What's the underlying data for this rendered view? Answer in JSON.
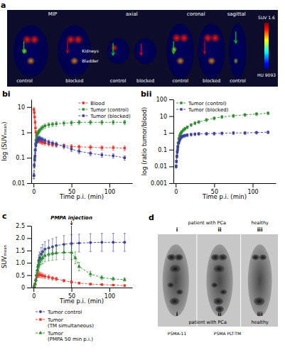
{
  "chart_data": [
    {
      "type": "image",
      "title": "a",
      "annotations": [
        "MIP",
        "axial",
        "coronal",
        "sagittal",
        "SUV 1.6",
        "control",
        "blocked",
        "control",
        "blocked",
        "control",
        "blocked",
        "control",
        "HU 9093",
        "Kidneys",
        "Bladder"
      ]
    },
    {
      "type": "line",
      "title": "bi",
      "xlabel": "Time p.i. (min)",
      "ylabel": "log (SUVₘₑₐₙ)",
      "log": "y",
      "xlim": [
        -3,
        130
      ],
      "ylim": [
        0.01,
        20
      ],
      "xticks": [
        0,
        50,
        100
      ],
      "yticks": [
        0.01,
        0.1,
        1,
        10
      ],
      "grid": false,
      "legend": "upper right",
      "series": [
        {
          "name": "Blood",
          "color": "#e8362a",
          "marker": "square",
          "line_style": "dashed",
          "x": [
            0.5,
            1,
            1.5,
            2,
            2.5,
            3,
            4,
            5,
            6,
            7,
            8,
            10,
            12,
            15,
            20,
            25,
            30,
            40,
            50,
            60,
            75,
            90,
            105,
            120
          ],
          "values": [
            8,
            6,
            4,
            2.5,
            1.5,
            1.0,
            0.7,
            0.55,
            0.5,
            0.48,
            0.45,
            0.42,
            0.4,
            0.38,
            0.35,
            0.33,
            0.32,
            0.3,
            0.28,
            0.27,
            0.26,
            0.25,
            0.25,
            0.24
          ],
          "errors": [
            1.5,
            1.2,
            0.8,
            0.5,
            0.3,
            0.2,
            0.15,
            0.12,
            0.1,
            0.09,
            0.08,
            0.07,
            0.07,
            0.07,
            0.06,
            0.06,
            0.06,
            0.05,
            0.05,
            0.05,
            0.05,
            0.05,
            0.05,
            0.05
          ]
        },
        {
          "name": "Tumor (control)",
          "color": "#2e8b2e",
          "marker": "square",
          "line_style": "dashed",
          "x": [
            0.5,
            1,
            1.5,
            2,
            2.5,
            3,
            4,
            5,
            6,
            7,
            8,
            10,
            12,
            15,
            20,
            25,
            30,
            40,
            50,
            60,
            75,
            90,
            105,
            120
          ],
          "values": [
            0.02,
            0.05,
            0.1,
            0.2,
            0.35,
            0.5,
            0.7,
            0.85,
            1.0,
            1.1,
            1.2,
            1.4,
            1.6,
            1.8,
            2.0,
            2.1,
            2.2,
            2.3,
            2.4,
            2.5,
            2.5,
            2.5,
            2.5,
            2.5
          ],
          "errors": [
            0.005,
            0.01,
            0.02,
            0.04,
            0.07,
            0.1,
            0.14,
            0.17,
            0.2,
            0.22,
            0.24,
            0.28,
            0.32,
            0.36,
            0.4,
            0.42,
            0.44,
            0.46,
            0.48,
            0.5,
            0.5,
            0.5,
            0.5,
            0.5
          ]
        },
        {
          "name": "Tumor (blocked)",
          "color": "#3d3da0",
          "marker": "square",
          "line_style": "dashed",
          "x": [
            0.5,
            1,
            1.5,
            2,
            2.5,
            3,
            4,
            5,
            6,
            7,
            8,
            10,
            12,
            15,
            20,
            25,
            30,
            40,
            50,
            60,
            75,
            90,
            105,
            120
          ],
          "values": [
            0.02,
            0.05,
            0.08,
            0.12,
            0.2,
            0.3,
            0.4,
            0.5,
            0.55,
            0.58,
            0.6,
            0.55,
            0.52,
            0.48,
            0.42,
            0.38,
            0.35,
            0.28,
            0.22,
            0.18,
            0.15,
            0.13,
            0.12,
            0.1
          ],
          "errors": [
            0.005,
            0.01,
            0.016,
            0.024,
            0.04,
            0.06,
            0.08,
            0.1,
            0.11,
            0.116,
            0.12,
            0.11,
            0.104,
            0.096,
            0.084,
            0.076,
            0.07,
            0.056,
            0.044,
            0.036,
            0.03,
            0.026,
            0.024,
            0.02
          ]
        }
      ]
    },
    {
      "type": "line",
      "title": "bii",
      "xlabel": "Time p.i. (min)",
      "ylabel": "log (ratio tumor/blood)",
      "log": "y",
      "xlim": [
        -3,
        130
      ],
      "ylim": [
        0.001,
        100
      ],
      "xticks": [
        0,
        50,
        100
      ],
      "yticks": [
        0.001,
        0.01,
        0.1,
        1,
        10,
        100
      ],
      "grid": false,
      "legend": "upper left",
      "series": [
        {
          "name": "Tumor (control)",
          "color": "#2e8b2e",
          "marker": "square",
          "line_style": "dashed",
          "x": [
            0.5,
            1,
            1.5,
            2,
            2.5,
            3,
            4,
            5,
            6,
            7,
            8,
            10,
            12,
            15,
            20,
            25,
            30,
            40,
            50,
            60,
            75,
            90,
            105,
            120
          ],
          "values": [
            0.01,
            0.02,
            0.04,
            0.08,
            0.15,
            0.25,
            0.45,
            0.65,
            0.85,
            1.0,
            1.2,
            1.5,
            1.8,
            2.2,
            3.0,
            3.8,
            4.5,
            6.0,
            7.5,
            9.0,
            10.5,
            12.0,
            13.5,
            15.0
          ],
          "errors": [
            0.002,
            0.004,
            0.008,
            0.016,
            0.03,
            0.05,
            0.09,
            0.13,
            0.17,
            0.2,
            0.24,
            0.3,
            0.36,
            0.44,
            0.6,
            0.76,
            0.9,
            1.2,
            1.5,
            1.8,
            2.1,
            2.4,
            2.7,
            3.0
          ]
        },
        {
          "name": "Tumor (blocked)",
          "color": "#3d3da0",
          "marker": "square",
          "line_style": "dashed",
          "x": [
            0.5,
            1,
            1.5,
            2,
            2.5,
            3,
            4,
            5,
            6,
            7,
            8,
            10,
            12,
            15,
            20,
            25,
            30,
            40,
            50,
            60,
            75,
            90,
            105,
            120
          ],
          "values": [
            0.01,
            0.02,
            0.04,
            0.07,
            0.1,
            0.15,
            0.25,
            0.35,
            0.45,
            0.55,
            0.6,
            0.65,
            0.7,
            0.75,
            0.8,
            0.85,
            0.88,
            0.9,
            0.92,
            0.95,
            1.0,
            1.0,
            1.05,
            1.1
          ],
          "errors": [
            0.002,
            0.004,
            0.008,
            0.014,
            0.02,
            0.03,
            0.05,
            0.07,
            0.09,
            0.11,
            0.12,
            0.13,
            0.14,
            0.15,
            0.16,
            0.17,
            0.176,
            0.18,
            0.184,
            0.19,
            0.2,
            0.2,
            0.21,
            0.22
          ]
        }
      ]
    },
    {
      "type": "line",
      "title": "c",
      "xlabel": "Time p.i. (min)",
      "ylabel": "SUVₘₑₐₙ",
      "xlim": [
        -3,
        130
      ],
      "ylim": [
        0,
        2.5
      ],
      "xticks": [
        0,
        50,
        100
      ],
      "yticks": [
        0,
        0.5,
        {
          "value": 1.0,
          "label": "1.0"
        },
        1.5,
        {
          "value": 2.0,
          "label": "2.0"
        },
        2.5
      ],
      "grid": false,
      "legend": "bottom",
      "annotations": [
        {
          "text": "PMPA injection",
          "x": 50
        }
      ],
      "series": [
        {
          "name": "Tumor control",
          "color": "#3d3da0",
          "marker": "circle",
          "line_style": "dashed",
          "x": [
            1,
            2,
            3,
            4,
            5,
            6,
            7,
            8,
            10,
            12,
            15,
            20,
            25,
            30,
            40,
            50,
            60,
            75,
            90,
            105,
            120
          ],
          "values": [
            0.05,
            0.15,
            0.3,
            0.5,
            0.7,
            0.9,
            1.1,
            1.2,
            1.35,
            1.45,
            1.55,
            1.6,
            1.65,
            1.7,
            1.75,
            1.78,
            1.8,
            1.82,
            1.83,
            1.83,
            1.83
          ],
          "errors": [
            0.01,
            0.03,
            0.06,
            0.1,
            0.14,
            0.18,
            0.22,
            0.24,
            0.27,
            0.29,
            0.31,
            0.32,
            0.33,
            0.34,
            0.35,
            0.356,
            0.36,
            0.364,
            0.366,
            0.366,
            0.366
          ]
        },
        {
          "name": "Tumor\n(TM simultaneous)",
          "color": "#e8362a",
          "marker": "square",
          "line_style": "dashed",
          "x": [
            1,
            2,
            3,
            4,
            5,
            6,
            7,
            8,
            10,
            12,
            15,
            20,
            25,
            30,
            40,
            50,
            60,
            75,
            90,
            105,
            120
          ],
          "values": [
            0.05,
            0.15,
            0.3,
            0.45,
            0.5,
            0.52,
            0.53,
            0.52,
            0.5,
            0.48,
            0.45,
            0.42,
            0.38,
            0.35,
            0.28,
            0.22,
            0.18,
            0.14,
            0.12,
            0.1,
            0.08
          ],
          "errors": [
            0.01,
            0.03,
            0.06,
            0.09,
            0.1,
            0.104,
            0.106,
            0.104,
            0.1,
            0.096,
            0.09,
            0.084,
            0.076,
            0.07,
            0.056,
            0.044,
            0.036,
            0.028,
            0.024,
            0.02,
            0.016
          ]
        },
        {
          "name": "Tumor\n(PMPA 50 min p.i.)",
          "color": "#2e8b2e",
          "marker": "triangle",
          "line_style": "dashed",
          "x": [
            1,
            2,
            3,
            4,
            5,
            6,
            7,
            8,
            10,
            12,
            15,
            20,
            25,
            30,
            40,
            50,
            55,
            60,
            75,
            90,
            105,
            120
          ],
          "values": [
            0.05,
            0.15,
            0.3,
            0.5,
            0.7,
            0.85,
            0.95,
            1.05,
            1.15,
            1.2,
            1.3,
            1.35,
            1.38,
            1.4,
            1.42,
            1.42,
            1.2,
            0.85,
            0.55,
            0.4,
            0.35,
            0.32
          ],
          "errors": [
            0.01,
            0.03,
            0.06,
            0.1,
            0.14,
            0.17,
            0.19,
            0.21,
            0.23,
            0.24,
            0.26,
            0.27,
            0.276,
            0.28,
            0.284,
            0.284,
            0.24,
            0.17,
            0.11,
            0.08,
            0.07,
            0.064
          ]
        }
      ]
    },
    {
      "type": "image",
      "title": "d",
      "annotations": [
        "i",
        "ii",
        "iii",
        "patient with PCa",
        "healthy",
        "i",
        "ii",
        "iii",
        "patient with PCa",
        "healthy",
        "PSMA-11",
        "PSMA PLT-TM"
      ]
    }
  ]
}
